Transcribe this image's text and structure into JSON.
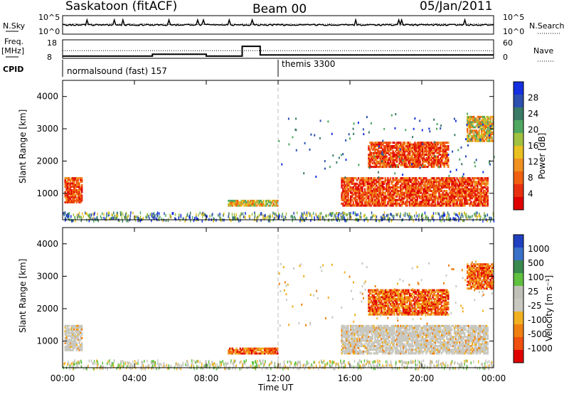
{
  "header": {
    "station": "Saskatoon (fitACF)",
    "beam": "Beam 00",
    "date": "05/Jan/2011"
  },
  "noise_panel": {
    "left_label": "N.Sky",
    "left_ticks": [
      "10^5",
      "10^0"
    ],
    "right_label": "N.Search",
    "right_ticks": [
      "10^5",
      "10^0"
    ]
  },
  "freq_panel": {
    "left_label_1": "Freq.",
    "left_label_2": "[MHz]",
    "left_ticks": [
      "18",
      "8"
    ],
    "right_label": "Nave",
    "right_ticks": [
      "60",
      "0"
    ],
    "freq_series": [
      [
        0,
        9.2
      ],
      [
        5,
        9.2
      ],
      [
        5,
        10.2
      ],
      [
        8,
        10.2
      ],
      [
        8,
        9.2
      ],
      [
        10,
        9.2
      ],
      [
        10,
        14.5
      ],
      [
        11,
        14.5
      ],
      [
        11,
        9.8
      ],
      [
        24,
        9.8
      ]
    ],
    "nave_series": [
      [
        0,
        25
      ],
      [
        24,
        25
      ]
    ]
  },
  "cpid_panel": {
    "label": "CPID",
    "segments": [
      {
        "start": 0,
        "name": "normalsound (fast) 157"
      },
      {
        "start": 12,
        "name": "themis 3300"
      }
    ]
  },
  "power_panel": {
    "ylabel": "Slant Range [km]",
    "yticks": [
      "1000",
      "2000",
      "3000",
      "4000"
    ],
    "colorbar_label": "Power [dB]",
    "colorbar_ticks": [
      "4",
      "8",
      "12",
      "16",
      "20",
      "24",
      "28"
    ],
    "colors": [
      "#1530e0",
      "#2c4fb0",
      "#3a7a66",
      "#50a860",
      "#a0c040",
      "#e8c020",
      "#f09020",
      "#f06010",
      "#e83010",
      "#e00000"
    ]
  },
  "velocity_panel": {
    "ylabel": "Slant Range [km]",
    "yticks": [
      "1000",
      "2000",
      "3000",
      "4000"
    ],
    "colorbar_label": "Velocity [m s⁻¹]",
    "colorbar_ticks": [
      "1000",
      "500",
      "100",
      "25",
      "-25",
      "-100",
      "-500",
      "-1000"
    ],
    "colors": [
      "#2040c0",
      "#3a70c8",
      "#3a8a50",
      "#60c040",
      "#c0c0b8",
      "#c8c8c0",
      "#f0b020",
      "#f08010",
      "#f05010",
      "#e00000"
    ]
  },
  "x_axis": {
    "label": "Time UT",
    "ticks": [
      "00:00",
      "04:00",
      "08:00",
      "12:00",
      "16:00",
      "20:00",
      "00:00"
    ]
  },
  "chart_data": {
    "type": "heatmap",
    "x_range_hours": [
      0,
      24
    ],
    "y_range_km": [
      180,
      4500
    ],
    "echo_regions": [
      {
        "t0": 0.1,
        "t1": 1.1,
        "r0": 700,
        "r1": 1500,
        "power": "high",
        "velocity": "near zero"
      },
      {
        "t0": 9.2,
        "t1": 12.0,
        "r0": 600,
        "r1": 800,
        "power": "medium",
        "velocity": "negative"
      },
      {
        "t0": 15.5,
        "t1": 23.7,
        "r0": 600,
        "r1": 1500,
        "power": "high",
        "velocity": "near zero"
      },
      {
        "t0": 17.0,
        "t1": 21.5,
        "r0": 1800,
        "r1": 2600,
        "power": "high",
        "velocity": "negative"
      },
      {
        "t0": 22.5,
        "t1": 24.0,
        "r0": 2600,
        "r1": 3400,
        "power": "medium",
        "velocity": "negative"
      }
    ]
  }
}
